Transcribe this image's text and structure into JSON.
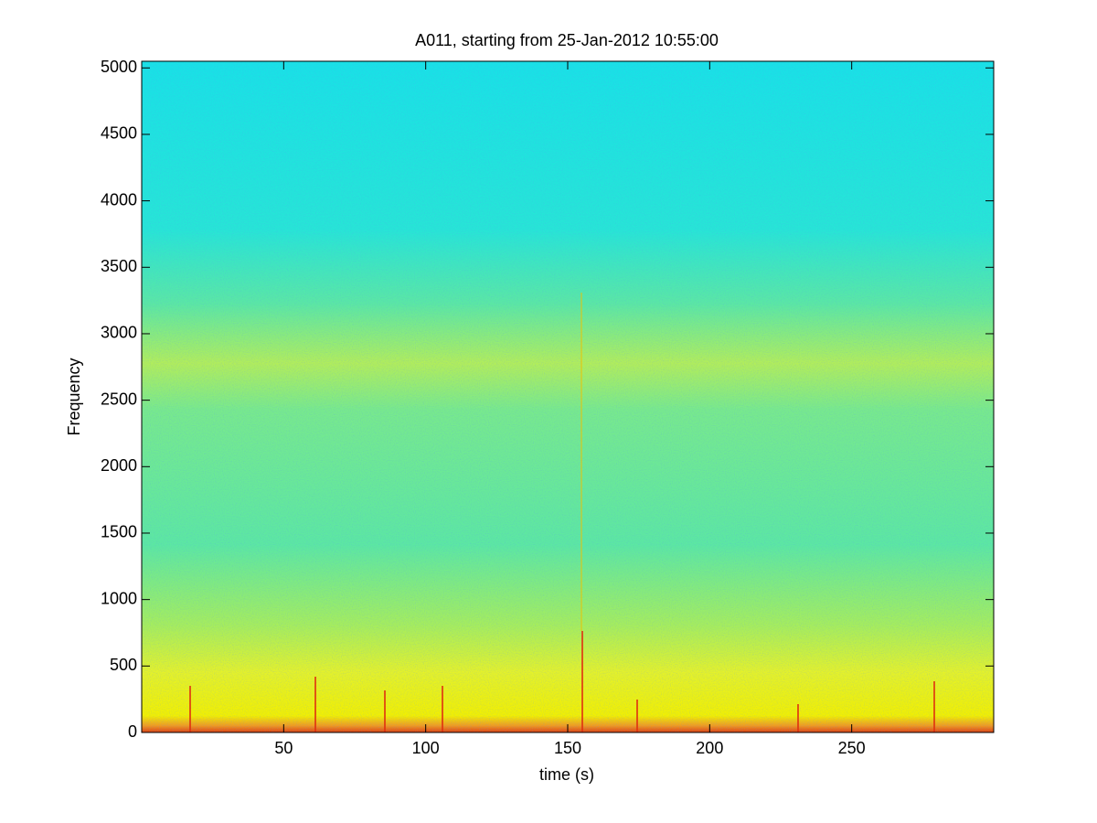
{
  "chart_data": {
    "type": "spectrogram",
    "title": "A011, starting from 25-Jan-2012 10:55:00",
    "x_label": "time (s)",
    "y_label": "Frequency",
    "xlim": [
      0,
      300
    ],
    "xticks": [
      50,
      100,
      150,
      200,
      250
    ],
    "ylim": [
      0,
      5050
    ],
    "yticks": [
      0,
      500,
      1000,
      1500,
      2000,
      2500,
      3000,
      3500,
      4000,
      4500,
      5000
    ]
  }
}
